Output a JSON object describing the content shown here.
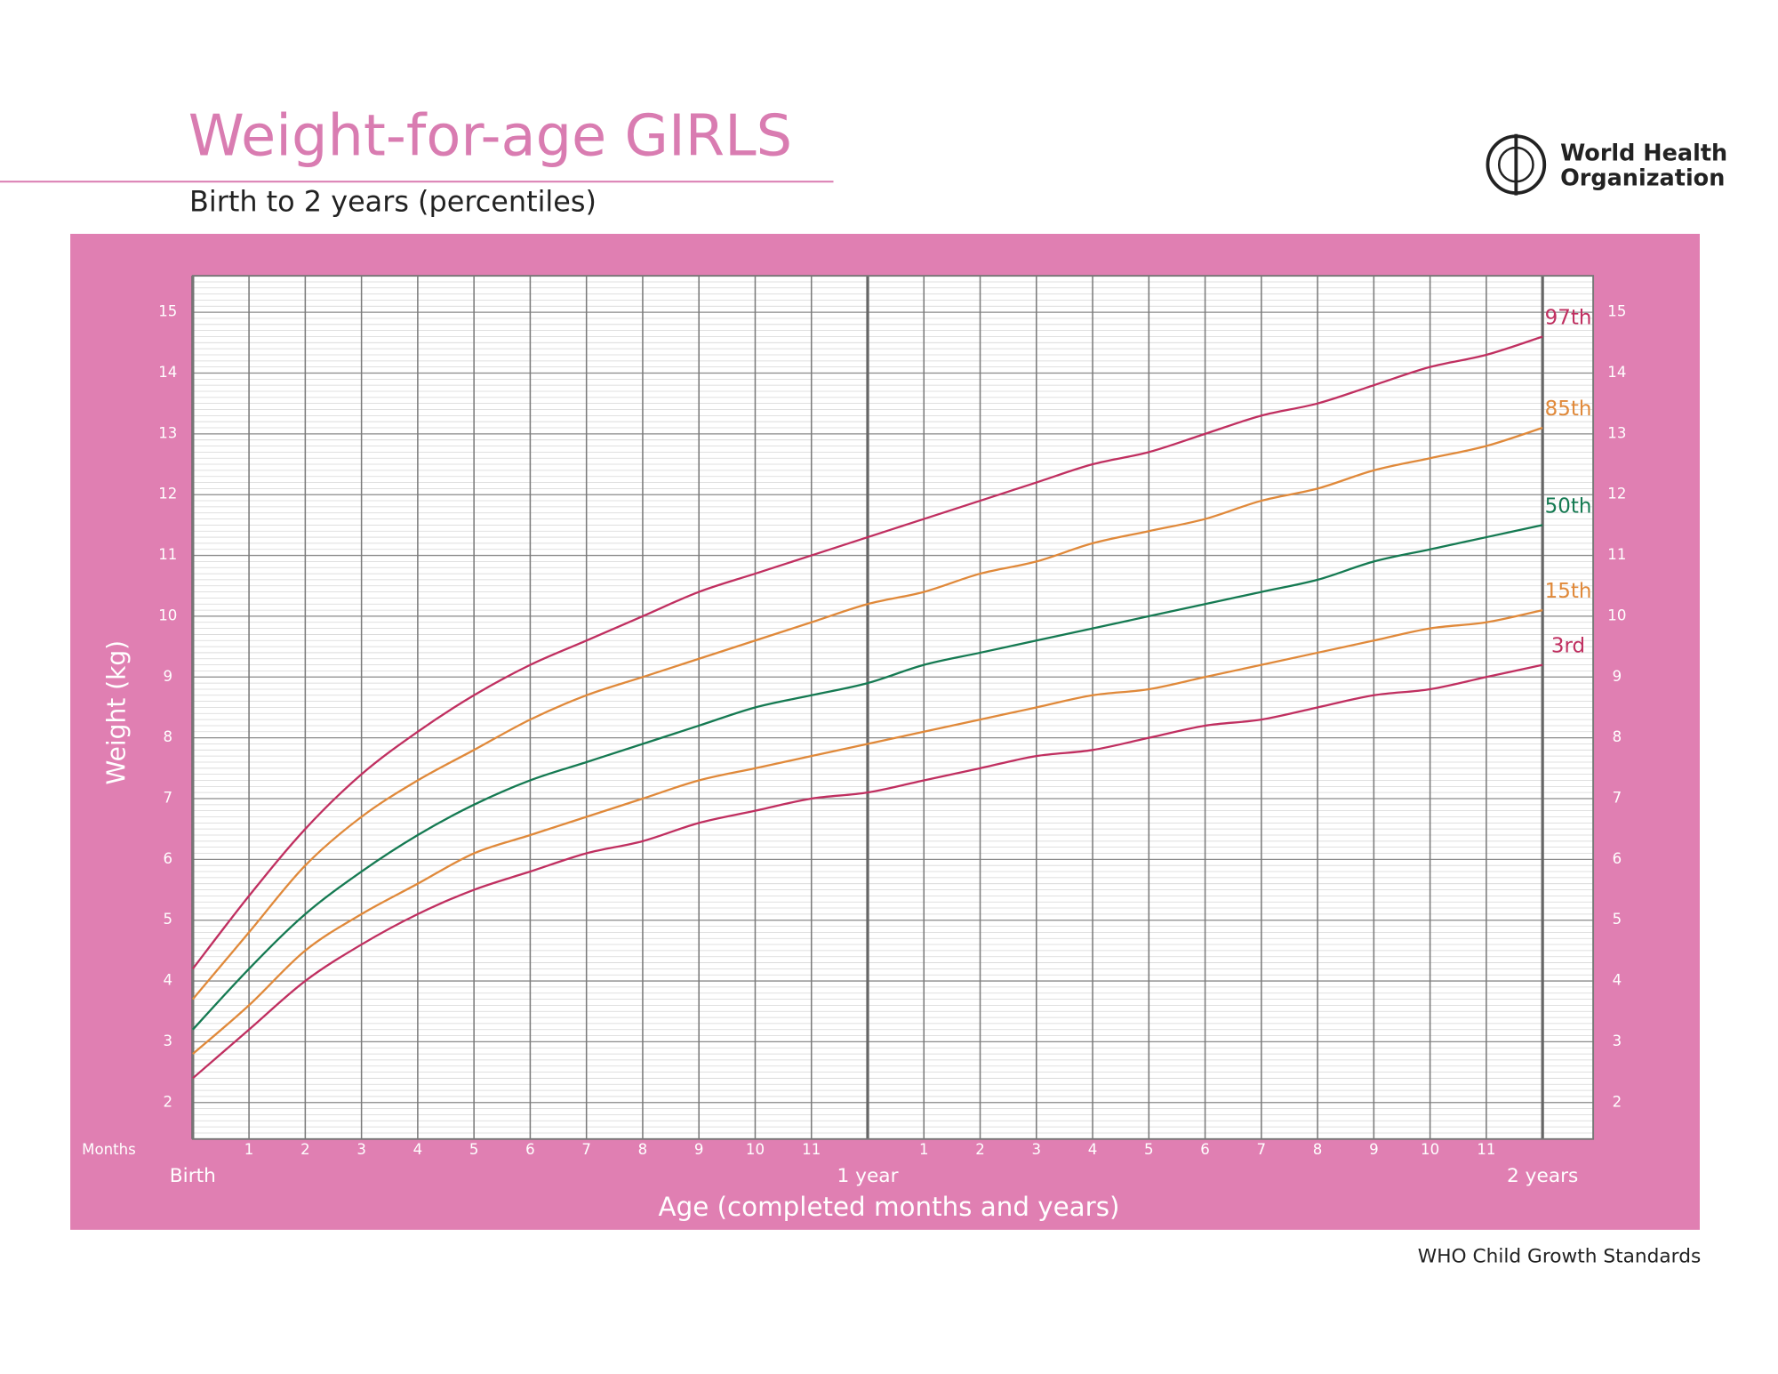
{
  "chart_data": {
    "type": "line",
    "title": "Weight-for-age GIRLS",
    "subtitle": "Birth to 2 years (percentiles)",
    "logo_lines": [
      "World Health",
      "Organization"
    ],
    "source": "WHO Child Growth Standards",
    "x_label": "Age (completed months and years)",
    "y_label": "Weight (kg)",
    "x_unit_label": "Months",
    "x": [
      0,
      1,
      2,
      3,
      4,
      5,
      6,
      7,
      8,
      9,
      10,
      11,
      12,
      13,
      14,
      15,
      16,
      17,
      18,
      19,
      20,
      21,
      22,
      23,
      24
    ],
    "series": [
      {
        "name": "97th",
        "color": "#c02f60",
        "values": [
          4.2,
          5.4,
          6.5,
          7.4,
          8.1,
          8.7,
          9.2,
          9.6,
          10.0,
          10.4,
          10.7,
          11.0,
          11.3,
          11.6,
          11.9,
          12.2,
          12.5,
          12.7,
          13.0,
          13.3,
          13.5,
          13.8,
          14.1,
          14.3,
          14.6
        ]
      },
      {
        "name": "85th",
        "color": "#e0893a",
        "values": [
          3.7,
          4.8,
          5.9,
          6.7,
          7.3,
          7.8,
          8.3,
          8.7,
          9.0,
          9.3,
          9.6,
          9.9,
          10.2,
          10.4,
          10.7,
          10.9,
          11.2,
          11.4,
          11.6,
          11.9,
          12.1,
          12.4,
          12.6,
          12.8,
          13.1
        ]
      },
      {
        "name": "50th",
        "color": "#157a52",
        "values": [
          3.2,
          4.2,
          5.1,
          5.8,
          6.4,
          6.9,
          7.3,
          7.6,
          7.9,
          8.2,
          8.5,
          8.7,
          8.9,
          9.2,
          9.4,
          9.6,
          9.8,
          10.0,
          10.2,
          10.4,
          10.6,
          10.9,
          11.1,
          11.3,
          11.5
        ]
      },
      {
        "name": "15th",
        "color": "#e0893a",
        "values": [
          2.8,
          3.6,
          4.5,
          5.1,
          5.6,
          6.1,
          6.4,
          6.7,
          7.0,
          7.3,
          7.5,
          7.7,
          7.9,
          8.1,
          8.3,
          8.5,
          8.7,
          8.8,
          9.0,
          9.2,
          9.4,
          9.6,
          9.8,
          9.9,
          10.1
        ]
      },
      {
        "name": "3rd",
        "color": "#c02f60",
        "values": [
          2.4,
          3.2,
          4.0,
          4.6,
          5.1,
          5.5,
          5.8,
          6.1,
          6.3,
          6.6,
          6.8,
          7.0,
          7.1,
          7.3,
          7.5,
          7.7,
          7.8,
          8.0,
          8.2,
          8.3,
          8.5,
          8.7,
          8.8,
          9.0,
          9.2
        ]
      }
    ],
    "xlim": [
      0,
      24.9
    ],
    "ylim": [
      1.4,
      15.6
    ],
    "xticks": [
      1,
      2,
      3,
      4,
      5,
      6,
      7,
      8,
      9,
      10,
      11,
      {
        "value": 13,
        "label": "1"
      },
      {
        "value": 14,
        "label": "2"
      },
      {
        "value": 15,
        "label": "3"
      },
      {
        "value": 16,
        "label": "4"
      },
      {
        "value": 17,
        "label": "5"
      },
      {
        "value": 18,
        "label": "6"
      },
      {
        "value": 19,
        "label": "7"
      },
      {
        "value": 20,
        "label": "8"
      },
      {
        "value": 21,
        "label": "9"
      },
      {
        "value": 22,
        "label": "10"
      },
      {
        "value": 23,
        "label": "11"
      }
    ],
    "xticks_years": [
      {
        "value": 0,
        "label": "Birth"
      },
      {
        "value": 12,
        "label": "1 year"
      },
      {
        "value": 24,
        "label": "2 years"
      }
    ],
    "yticks": [
      2,
      3,
      4,
      5,
      6,
      7,
      8,
      9,
      10,
      11,
      12,
      13,
      14,
      15
    ],
    "grid": true
  }
}
